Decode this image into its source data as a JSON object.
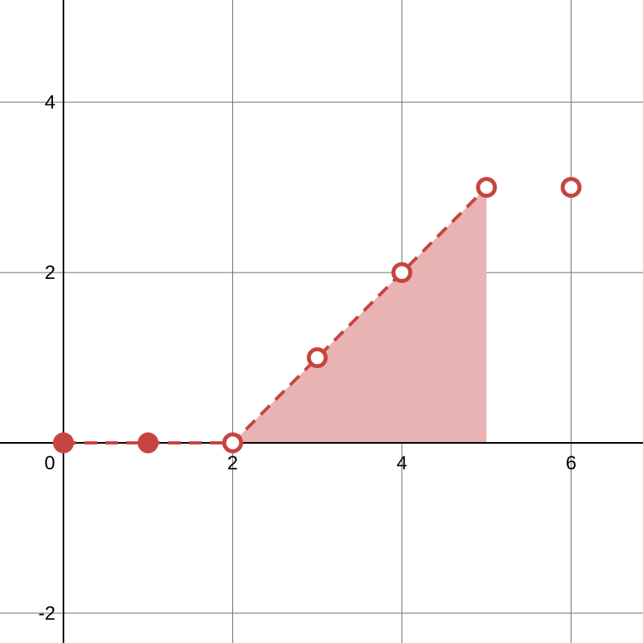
{
  "chart_data": {
    "type": "line",
    "xlim": [
      -0.75,
      6.85
    ],
    "ylim": [
      -2.35,
      5.2
    ],
    "grid": true,
    "grid_lines_x": [
      2,
      4,
      6
    ],
    "grid_lines_y": [
      -2,
      2,
      4
    ],
    "x_tick_labels": [
      {
        "value": 0,
        "label": "0"
      },
      {
        "value": 2,
        "label": "2"
      },
      {
        "value": 4,
        "label": "4"
      },
      {
        "value": 6,
        "label": "6"
      }
    ],
    "y_tick_labels": [
      {
        "value": -2,
        "label": "-2"
      },
      {
        "value": 2,
        "label": "2"
      },
      {
        "value": 4,
        "label": "4"
      }
    ],
    "series": [
      {
        "style": "dashed",
        "color": "#c74440",
        "x": [
          0,
          1,
          2,
          3,
          4,
          5
        ],
        "y": [
          0,
          0,
          0,
          1,
          2,
          3
        ]
      }
    ],
    "points": [
      {
        "x": 0,
        "y": 0,
        "kind": "filled"
      },
      {
        "x": 1,
        "y": 0,
        "kind": "filled"
      },
      {
        "x": 2,
        "y": 0,
        "kind": "open"
      },
      {
        "x": 3,
        "y": 1,
        "kind": "open"
      },
      {
        "x": 4,
        "y": 2,
        "kind": "open"
      },
      {
        "x": 5,
        "y": 3,
        "kind": "open"
      },
      {
        "x": 6,
        "y": 3,
        "kind": "open"
      }
    ],
    "shaded_region": {
      "color": "#e8b3b2",
      "x": [
        2,
        5,
        5
      ],
      "y": [
        0,
        3,
        0
      ]
    }
  }
}
